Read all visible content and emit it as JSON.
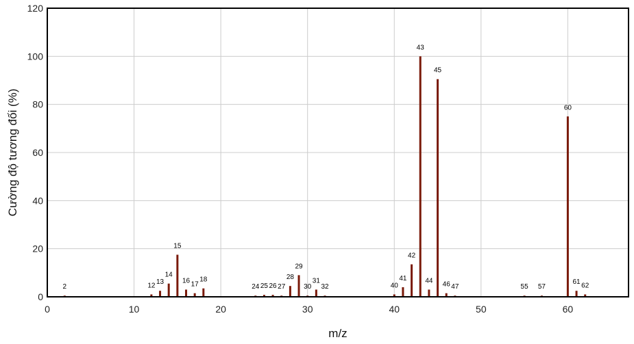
{
  "chart_data": {
    "type": "bar",
    "title": "",
    "xlabel": "m/z",
    "ylabel": "Cường độ tương đối (%)",
    "xlim": [
      0,
      67
    ],
    "ylim": [
      0,
      120
    ],
    "xticks": [
      0,
      10,
      20,
      30,
      40,
      50,
      60
    ],
    "yticks": [
      0,
      20,
      40,
      60,
      80,
      100,
      120
    ],
    "grid": true,
    "legend": "none",
    "colors": {
      "bar": "#7a1a0a",
      "grid": "#cccccc",
      "frame": "#000000"
    },
    "peaks": [
      {
        "mz": 2,
        "label": "2",
        "value": 0.5
      },
      {
        "mz": 12,
        "label": "12",
        "value": 1.0
      },
      {
        "mz": 13,
        "label": "13",
        "value": 2.5
      },
      {
        "mz": 14,
        "label": "14",
        "value": 5.5
      },
      {
        "mz": 15,
        "label": "15",
        "value": 17.5
      },
      {
        "mz": 16,
        "label": "16",
        "value": 3.0
      },
      {
        "mz": 17,
        "label": "17",
        "value": 1.5
      },
      {
        "mz": 18,
        "label": "18",
        "value": 3.5
      },
      {
        "mz": 24,
        "label": "24",
        "value": 0.5
      },
      {
        "mz": 25,
        "label": "25",
        "value": 0.8
      },
      {
        "mz": 26,
        "label": "26",
        "value": 0.8
      },
      {
        "mz": 27,
        "label": "27",
        "value": 0.5
      },
      {
        "mz": 28,
        "label": "28",
        "value": 4.5
      },
      {
        "mz": 29,
        "label": "29",
        "value": 9.0
      },
      {
        "mz": 30,
        "label": "30",
        "value": 0.5
      },
      {
        "mz": 31,
        "label": "31",
        "value": 3.0
      },
      {
        "mz": 32,
        "label": "32",
        "value": 0.5
      },
      {
        "mz": 40,
        "label": "40",
        "value": 1.0
      },
      {
        "mz": 41,
        "label": "41",
        "value": 4.0
      },
      {
        "mz": 42,
        "label": "42",
        "value": 13.5
      },
      {
        "mz": 43,
        "label": "43",
        "value": 100.0
      },
      {
        "mz": 44,
        "label": "44",
        "value": 3.0
      },
      {
        "mz": 45,
        "label": "45",
        "value": 90.5
      },
      {
        "mz": 46,
        "label": "46",
        "value": 1.5
      },
      {
        "mz": 47,
        "label": "47",
        "value": 0.5
      },
      {
        "mz": 55,
        "label": "55",
        "value": 0.5
      },
      {
        "mz": 57,
        "label": "57",
        "value": 0.5
      },
      {
        "mz": 60,
        "label": "60",
        "value": 75.0
      },
      {
        "mz": 61,
        "label": "61",
        "value": 2.5
      },
      {
        "mz": 62,
        "label": "62",
        "value": 1.0
      }
    ]
  }
}
